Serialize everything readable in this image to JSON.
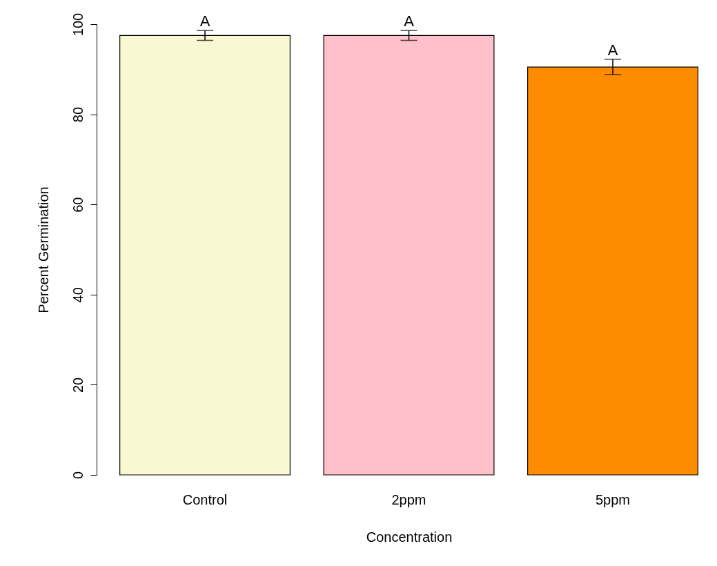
{
  "chart_data": {
    "type": "bar",
    "xlabel": "Concentration",
    "ylabel": "Percent Germination",
    "categories": [
      "Control",
      "2ppm",
      "5ppm"
    ],
    "values": [
      97.5,
      97.5,
      90.5
    ],
    "colors": [
      "#f8f8d2",
      "#ffc0cb",
      "#ff8c00"
    ],
    "errors": [
      1.1,
      1.1,
      1.7
    ],
    "ylim": [
      0,
      100
    ],
    "yticks": [
      0,
      20,
      40,
      60,
      80,
      100
    ],
    "grid": false,
    "annotations": [
      {
        "text": "A",
        "x": "Control",
        "y": 98.6
      },
      {
        "text": "A",
        "x": "2ppm",
        "y": 98.6
      },
      {
        "text": "A",
        "x": "5ppm",
        "y": 92.2
      }
    ]
  }
}
